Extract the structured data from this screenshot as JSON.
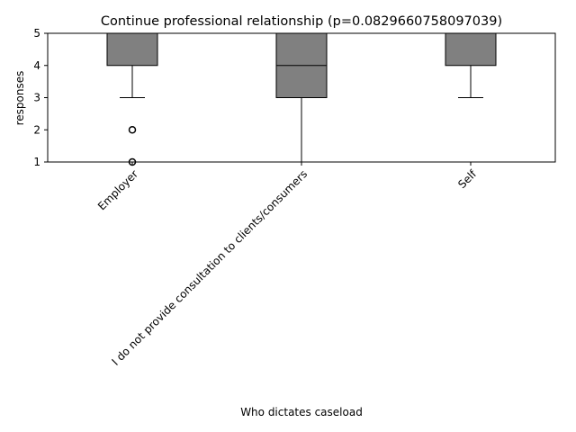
{
  "chart_data": {
    "type": "box",
    "title": "Continue professional relationship (p=0.0829660758097039)",
    "xlabel": "Who dictates caseload",
    "ylabel": "responses",
    "ylim": [
      1,
      5
    ],
    "yticks": [
      1,
      2,
      3,
      4,
      5
    ],
    "grid": false,
    "categories": [
      "Employer",
      "I do not provide consultation to clients/consumers",
      "Self"
    ],
    "boxes": [
      {
        "category": "Employer",
        "q1": 4,
        "median": 5,
        "q3": 5,
        "whisker_low": 3,
        "whisker_high": 5,
        "outliers": [
          2,
          1
        ]
      },
      {
        "category": "I do not provide consultation to clients/consumers",
        "q1": 3,
        "median": 4,
        "q3": 5,
        "whisker_low": 1,
        "whisker_high": 5,
        "outliers": []
      },
      {
        "category": "Self",
        "q1": 4,
        "median": 5,
        "q3": 5,
        "whisker_low": 3,
        "whisker_high": 5,
        "outliers": []
      }
    ],
    "colors": {
      "box_fill": "#808080",
      "edge": "#000000"
    }
  }
}
